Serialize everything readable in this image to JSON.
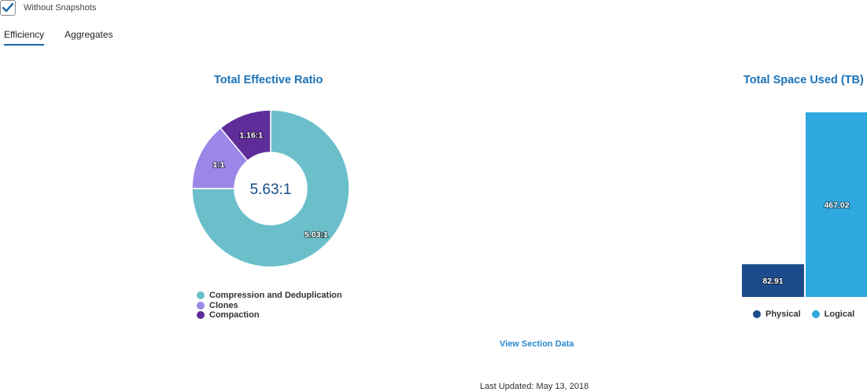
{
  "filters": {
    "without_snapshots_label": "Without Snapshots",
    "without_snapshots_checked": true,
    "checkbox_color": "#1a66a8"
  },
  "tabs": [
    {
      "label": "Efficiency",
      "active": true
    },
    {
      "label": "Aggregates",
      "active": false
    }
  ],
  "chart_data": [
    {
      "type": "pie",
      "variant": "donut",
      "title": "Total Effective Ratio",
      "center_label": "5.63:1",
      "slices": [
        {
          "name": "Compression and Deduplication",
          "label": "5.03:1",
          "share": 0.75,
          "color": "#6bbfcb"
        },
        {
          "name": "Clones",
          "label": "1:1",
          "share": 0.14,
          "color": "#9b87e8"
        },
        {
          "name": "Compaction",
          "label": "1.16:1",
          "share": 0.11,
          "color": "#5e2d9a"
        }
      ],
      "legend_position": "bottom-left"
    },
    {
      "type": "bar",
      "title": "Total Space Used (TB)",
      "categories": [
        "Physical",
        "Logical"
      ],
      "values": [
        82.91,
        467.02
      ],
      "value_labels": [
        "82.91",
        "467.02"
      ],
      "colors": [
        "#1c4c8c",
        "#2fa8df"
      ],
      "grid": false,
      "legend_position": "bottom"
    }
  ],
  "footer": {
    "view_section_data": "View Section Data",
    "last_updated": "Last Updated: May 13, 2018"
  }
}
